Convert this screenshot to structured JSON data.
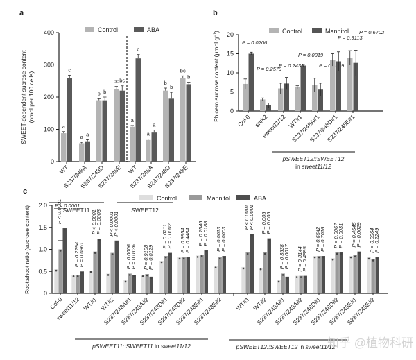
{
  "colors": {
    "control": "#b4b4b4",
    "aba": "#5a5a5a",
    "mannitol_b": "#555555",
    "c_control": "#dedede",
    "c_mannitol": "#9a9a9a",
    "c_aba": "#4e4e4e",
    "axis": "#222222"
  },
  "watermark": "知乎 @植物科研",
  "chart_data": [
    {
      "panel": "a",
      "type": "bar",
      "ylabel_line1": "SWEET-dependent sucrose content",
      "ylabel_line2": "(nmol per 100 cells)",
      "ylim": [
        0,
        400
      ],
      "yticks": [
        "0",
        "100",
        "200",
        "300",
        "400"
      ],
      "yticks_values": [
        0,
        100,
        200,
        300,
        400
      ],
      "legend": [
        "Control",
        "ABA"
      ],
      "legend_placement": "top",
      "categories": [
        "WT",
        "S237/248A",
        "S237/248D",
        "S237/248E",
        "WT",
        "S237/248A",
        "S237/248D",
        "S237/248E"
      ],
      "groups": [
        {
          "label": "SWEET11",
          "from": 0,
          "to": 3
        },
        {
          "label": "SWEET12",
          "from": 4,
          "to": 7
        }
      ],
      "series": [
        {
          "name": "Control",
          "values": [
            88,
            57,
            190,
            225,
            108,
            67,
            220,
            258
          ],
          "errors": [
            5,
            3,
            5,
            8,
            4,
            3,
            8,
            8
          ],
          "letters": [
            "a",
            "a",
            "b",
            "bc",
            "a",
            "a",
            "b",
            "bc"
          ]
        },
        {
          "name": "ABA",
          "values": [
            260,
            63,
            190,
            220,
            320,
            90,
            195,
            240
          ],
          "errors": [
            8,
            5,
            10,
            15,
            12,
            8,
            20,
            6
          ],
          "letters": [
            "c",
            "a",
            "b",
            "bc",
            "c",
            "a",
            "b",
            "b"
          ]
        }
      ]
    },
    {
      "panel": "b",
      "type": "bar",
      "ylabel": "Phloem sucrose content (μmol g",
      "ylabel_sup": "−1",
      "ylabel_end": ")",
      "ylim": [
        0,
        20
      ],
      "yticks": [
        "0",
        "5",
        "10",
        "15",
        "20"
      ],
      "yticks_values": [
        0,
        5,
        10,
        15,
        20
      ],
      "legend": [
        "Control",
        "Mannitol"
      ],
      "legend_placement": "top",
      "categories": [
        "Col-0",
        "snrk2",
        "sweet11/12",
        "WT#1",
        "S237/248A#1",
        "S237/248D#1",
        "S237/248E#1"
      ],
      "group_label_line1": "pSWEET12::SWEET12",
      "group_label_line2_prefix": "in ",
      "group_label_line2_italic": "sweet11/12",
      "group_from": 3,
      "group_to": 6,
      "series": [
        {
          "name": "Control",
          "values": [
            7.1,
            3.0,
            5.9,
            6.2,
            6.8,
            13.4,
            13.9
          ],
          "errors": [
            1.3,
            0.4,
            1.4,
            0.4,
            1.8,
            1.6,
            1.9
          ]
        },
        {
          "name": "Mannitol",
          "values": [
            15.0,
            1.5,
            7.2,
            11.9,
            5.6,
            13.0,
            12.6
          ],
          "errors": [
            0.4,
            0.6,
            1.6,
            0.3,
            1.7,
            2.5,
            3.3
          ]
        }
      ],
      "pvalues": [
        "P = 0.0206",
        "P = 0.2579",
        "P = 0.2431",
        "P = 0.0019",
        "P = 0.0439",
        "P = 0.9113",
        "P = 0.6702"
      ]
    },
    {
      "panel": "c",
      "type": "bar",
      "ylabel": "Root:shoot ratio (sucrose content)",
      "ylim": [
        0,
        2.0
      ],
      "yticks": [
        "0",
        "0.5",
        "1.0",
        "1.5",
        "2.0"
      ],
      "yticks_values": [
        0,
        0.5,
        1.0,
        1.5,
        2.0
      ],
      "legend": [
        "Control",
        "Mannitol",
        "ABA"
      ],
      "legend_placement": "top",
      "categories": [
        "Col-0",
        "sweet11/12",
        "WT#1",
        "WT#2",
        "S237/248A#1",
        "S237/248A#2",
        "S237/248D#1",
        "S237/248D#2",
        "S237/248E#1",
        "S237/248E#2",
        "WT#1",
        "WT#2",
        "S237/248A#1",
        "S237/248A#2",
        "S237/248D#1",
        "S237/248D#2",
        "S237/248E#1",
        "S237/248E#2"
      ],
      "group1_label_italic": "pSWEET11::SWEET11",
      "group1_label_mid": " in ",
      "group1_label_italic2": "sweet11/12",
      "group2_label_italic": "pSWEET12::SWEET12",
      "group2_label_mid": " in ",
      "group2_label_italic2": "sweet11/12",
      "top_pvalue": "P < 0.0001",
      "series": [
        {
          "name": "Control",
          "values": [
            0.55,
            0.42,
            0.52,
            0.45,
            0.3,
            0.42,
            0.74,
            0.82,
            0.86,
            0.62,
            0.6,
            0.58,
            0.3,
            0.4,
            0.85,
            0.8,
            0.85,
            0.82
          ]
        },
        {
          "name": "Mannitol",
          "values": [
            1.0,
            0.42,
            0.95,
            0.92,
            0.45,
            0.44,
            0.85,
            0.82,
            0.88,
            0.82,
            0.93,
            0.93,
            0.45,
            0.4,
            0.85,
            0.93,
            0.87,
            0.78
          ]
        },
        {
          "name": "ABA",
          "values": [
            1.48,
            0.5,
            1.24,
            1.2,
            0.42,
            0.38,
            0.92,
            0.82,
            0.98,
            0.85,
            1.35,
            1.25,
            0.38,
            0.4,
            0.85,
            0.93,
            0.95,
            0.82
          ]
        }
      ],
      "pvalues_mannitol": [
        "P < 0.0001",
        "P = 0.2294",
        "P < 0.0001",
        "P < 0.0001",
        "P = 0.0006",
        "P = 0.9108",
        "P = 0.0211",
        "P = 0.3954",
        "P = 0.7546",
        "P = 0.0013",
        "P < 0.0001",
        "P = 0.005",
        "P = 0.3538",
        "P = 0.3144",
        "P = 0.6542",
        "P = 0.0067",
        "P = 0.4545",
        "P = 0.0964"
      ],
      "pvalues_aba": [
        "",
        "P = 0.0861",
        "P = 0.0003",
        "P < 0.0001",
        "P = 0.0136",
        "P = 0.0129",
        "P = 0.0002",
        "P = 0.4484",
        "P = 0.0188",
        "P = 0.0003",
        "P < 0.0001",
        "P = 0.005",
        "P = 0.0017",
        "P = 0.4895",
        "P = 0.7016",
        "P = 0.0031",
        "P = 0.0029",
        "P = 0.2249"
      ]
    }
  ]
}
